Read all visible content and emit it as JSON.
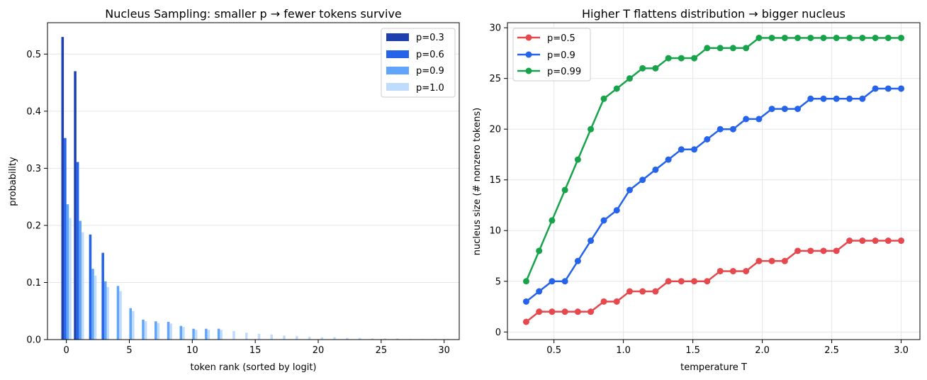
{
  "chart_data": [
    {
      "type": "bar",
      "title": "Nucleus Sampling: smaller p → fewer tokens survive",
      "xlabel": "token rank (sorted by logit)",
      "ylabel": "probability",
      "xlim": [
        -1.5,
        31.2
      ],
      "ylim": [
        0,
        0.555
      ],
      "xticks": [
        0,
        5,
        10,
        15,
        20,
        25,
        30
      ],
      "yticks": [
        0.0,
        0.1,
        0.2,
        0.3,
        0.4,
        0.5
      ],
      "grid": "y",
      "legend_position": "top-right",
      "categories": [
        0,
        1,
        2,
        3,
        4,
        5,
        6,
        7,
        8,
        9,
        10,
        11,
        12,
        13,
        14,
        15,
        16,
        17,
        18,
        19,
        20,
        21,
        22,
        23,
        24,
        25,
        26,
        27,
        28,
        29,
        30
      ],
      "series": [
        {
          "name": "p=0.3",
          "color": "#1e40af",
          "values": [
            0.53,
            0.47,
            0,
            0,
            0,
            0,
            0,
            0,
            0,
            0,
            0,
            0,
            0,
            0,
            0,
            0,
            0,
            0,
            0,
            0,
            0,
            0,
            0,
            0,
            0,
            0,
            0,
            0,
            0,
            0,
            0
          ]
        },
        {
          "name": "p=0.6",
          "color": "#2563eb",
          "values": [
            0.353,
            0.311,
            0.184,
            0.152,
            0,
            0,
            0,
            0,
            0,
            0,
            0,
            0,
            0,
            0,
            0,
            0,
            0,
            0,
            0,
            0,
            0,
            0,
            0,
            0,
            0,
            0,
            0,
            0,
            0,
            0,
            0
          ]
        },
        {
          "name": "p=0.9",
          "color": "#60a5fa",
          "values": [
            0.237,
            0.208,
            0.124,
            0.102,
            0.094,
            0.055,
            0.035,
            0.032,
            0.031,
            0.024,
            0.019,
            0.019,
            0.019,
            0,
            0,
            0,
            0,
            0,
            0,
            0,
            0,
            0,
            0,
            0,
            0,
            0,
            0,
            0,
            0,
            0,
            0
          ]
        },
        {
          "name": "p=1.0",
          "color": "#bfdbfe",
          "values": [
            0.213,
            0.188,
            0.112,
            0.092,
            0.085,
            0.05,
            0.032,
            0.029,
            0.028,
            0.022,
            0.017,
            0.017,
            0.017,
            0.015,
            0.012,
            0.01,
            0.009,
            0.007,
            0.006,
            0.005,
            0.004,
            0.004,
            0.003,
            0.003,
            0.002,
            0.002,
            0.002,
            0.001,
            0.001,
            0.001,
            0.001
          ]
        }
      ]
    },
    {
      "type": "line",
      "title": "Higher T flattens distribution → bigger nucleus",
      "xlabel": "temperature T",
      "ylabel": "nucleus size (# nonzero tokens)",
      "xlim": [
        0.165,
        3.135
      ],
      "ylim": [
        -0.75,
        30.5
      ],
      "xticks": [
        0.5,
        1.0,
        1.5,
        2.0,
        2.5,
        3.0
      ],
      "xtick_labels": [
        "0.5",
        "1.0",
        "1.5",
        "2.0",
        "2.5",
        "3.0"
      ],
      "yticks": [
        0,
        5,
        10,
        15,
        20,
        25,
        30
      ],
      "grid": "both",
      "legend_position": "top-left",
      "x": [
        0.3,
        0.393,
        0.486,
        0.579,
        0.672,
        0.765,
        0.859,
        0.952,
        1.045,
        1.138,
        1.231,
        1.324,
        1.417,
        1.51,
        1.603,
        1.697,
        1.79,
        1.883,
        1.976,
        2.069,
        2.162,
        2.255,
        2.348,
        2.441,
        2.534,
        2.628,
        2.721,
        2.814,
        2.907,
        3.0
      ],
      "series": [
        {
          "name": "p=0.5",
          "color": "#e5484d",
          "values": [
            1,
            2,
            2,
            2,
            2,
            2,
            3,
            3,
            4,
            4,
            4,
            5,
            5,
            5,
            5,
            6,
            6,
            6,
            7,
            7,
            7,
            8,
            8,
            8,
            8,
            9,
            9,
            9,
            9,
            9
          ]
        },
        {
          "name": "p=0.9",
          "color": "#2563eb",
          "values": [
            3,
            4,
            5,
            5,
            7,
            9,
            11,
            12,
            14,
            15,
            16,
            17,
            18,
            18,
            19,
            20,
            20,
            21,
            21,
            22,
            22,
            22,
            23,
            23,
            23,
            23,
            23,
            24,
            24,
            24
          ]
        },
        {
          "name": "p=0.99",
          "color": "#16a34a",
          "values": [
            5,
            8,
            11,
            14,
            17,
            20,
            23,
            24,
            25,
            26,
            26,
            27,
            27,
            27,
            28,
            28,
            28,
            28,
            29,
            29,
            29,
            29,
            29,
            29,
            29,
            29,
            29,
            29,
            29,
            29
          ]
        }
      ]
    }
  ]
}
